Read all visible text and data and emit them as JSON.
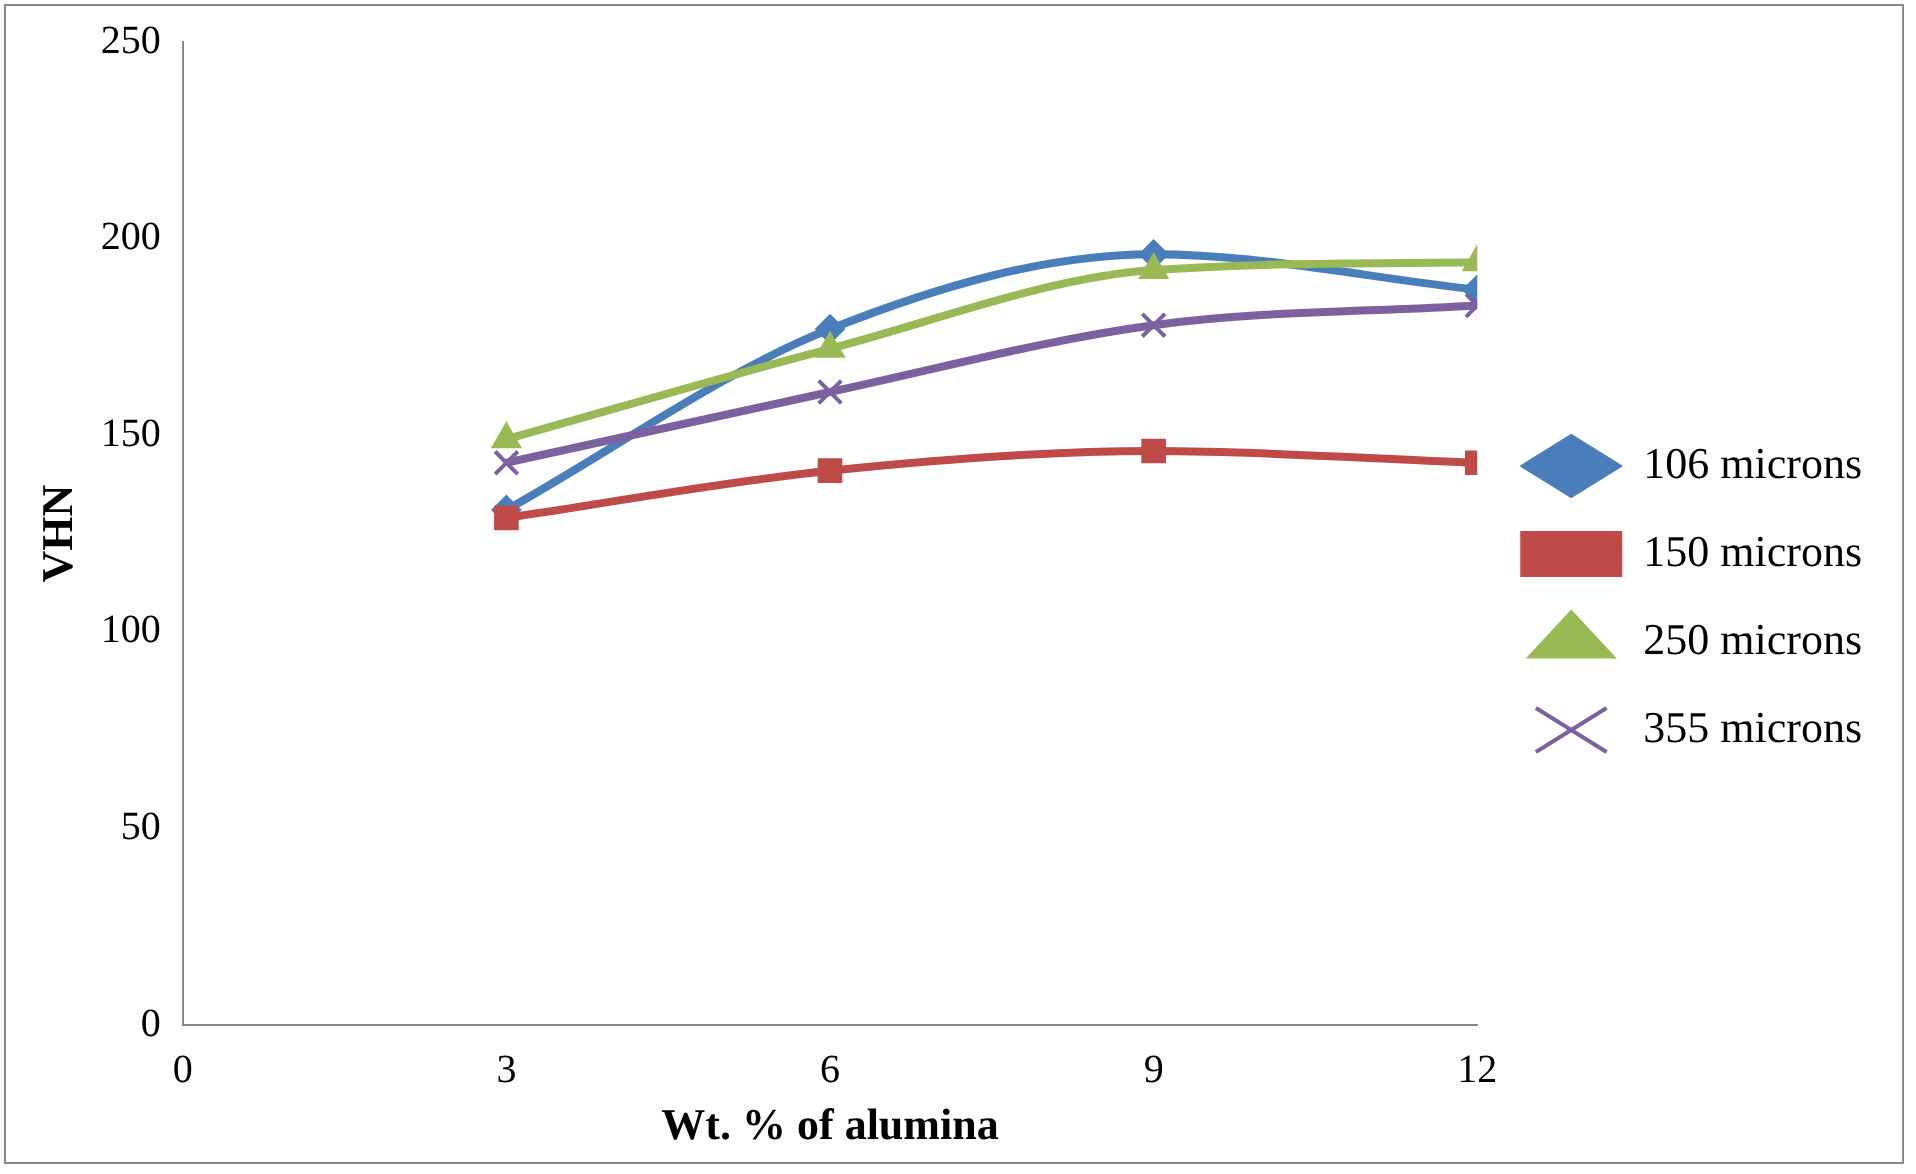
{
  "chart_data": {
    "type": "line",
    "xlabel": "Wt. % of alumina",
    "ylabel": "VHN",
    "x": [
      3,
      6,
      9,
      12
    ],
    "series": [
      {
        "name": "106 microns",
        "color": "#4a7ebb",
        "marker": "diamond",
        "values": [
          131,
          177,
          196,
          187
        ]
      },
      {
        "name": "150 microns",
        "color": "#be4b48",
        "marker": "square",
        "values": [
          129,
          141,
          146,
          143
        ]
      },
      {
        "name": "250 microns",
        "color": "#98b954",
        "marker": "triangle",
        "values": [
          149,
          172,
          192,
          194
        ]
      },
      {
        "name": "355 microns",
        "color": "#7d60a0",
        "marker": "cross",
        "values": [
          143,
          161,
          178,
          183
        ]
      }
    ],
    "xlim": [
      0,
      12
    ],
    "xticks": [
      0,
      3,
      6,
      9,
      12
    ],
    "ylim": [
      0,
      250
    ],
    "yticks": [
      0,
      50,
      100,
      150,
      200,
      250
    ],
    "grid": false,
    "legend": "right",
    "line_style": "solid"
  }
}
